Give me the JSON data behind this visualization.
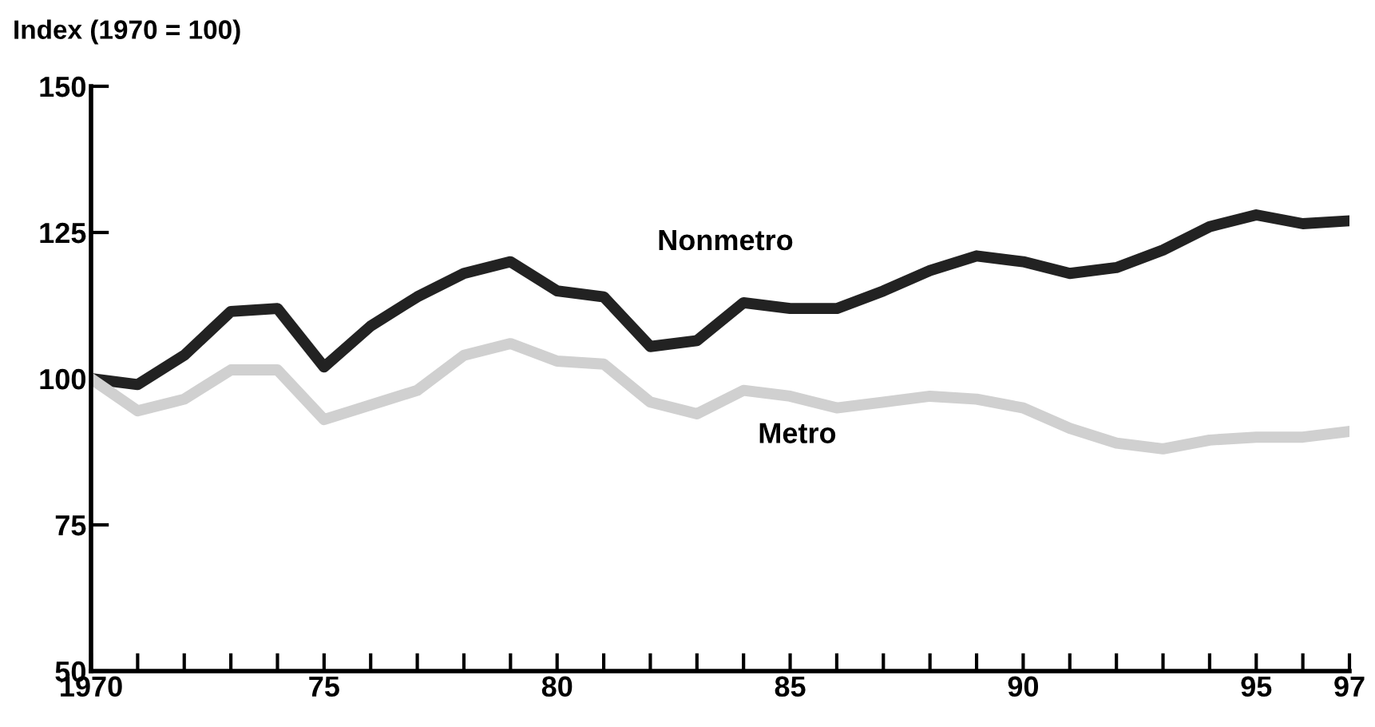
{
  "chart_data": {
    "type": "line",
    "ylabel": "Index (1970 = 100)",
    "x": [
      1970,
      1971,
      1972,
      1973,
      1974,
      1975,
      1976,
      1977,
      1978,
      1979,
      1980,
      1981,
      1982,
      1983,
      1984,
      1985,
      1986,
      1987,
      1988,
      1989,
      1990,
      1991,
      1992,
      1993,
      1994,
      1995,
      1996,
      1997
    ],
    "series": [
      {
        "name": "Nonmetro",
        "color": "#222222",
        "values": [
          100,
          99,
          104,
          111.5,
          112,
          102,
          109,
          114,
          118,
          120,
          115,
          114,
          105.5,
          106.5,
          113,
          112,
          112,
          115,
          118.5,
          121,
          120,
          118,
          119,
          122,
          126,
          128,
          126.5,
          127
        ]
      },
      {
        "name": "Metro",
        "color": "#d0d0d0",
        "values": [
          100,
          94.5,
          96.5,
          101.5,
          101.5,
          93,
          95.5,
          98,
          104,
          106,
          103,
          102.5,
          96,
          94,
          98,
          97,
          95,
          96,
          97,
          96.5,
          95,
          91.5,
          89,
          88,
          89.5,
          90,
          90,
          91
        ]
      }
    ],
    "xlim": [
      1970,
      1997
    ],
    "ylim": [
      50,
      150
    ],
    "xticks": [
      {
        "value": 1970,
        "label": "1970"
      },
      {
        "value": 1971,
        "label": null
      },
      {
        "value": 1972,
        "label": null
      },
      {
        "value": 1973,
        "label": null
      },
      {
        "value": 1974,
        "label": null
      },
      {
        "value": 1975,
        "label": "75"
      },
      {
        "value": 1976,
        "label": null
      },
      {
        "value": 1977,
        "label": null
      },
      {
        "value": 1978,
        "label": null
      },
      {
        "value": 1979,
        "label": null
      },
      {
        "value": 1980,
        "label": "80"
      },
      {
        "value": 1981,
        "label": null
      },
      {
        "value": 1982,
        "label": null
      },
      {
        "value": 1983,
        "label": null
      },
      {
        "value": 1984,
        "label": null
      },
      {
        "value": 1985,
        "label": "85"
      },
      {
        "value": 1986,
        "label": null
      },
      {
        "value": 1987,
        "label": null
      },
      {
        "value": 1988,
        "label": null
      },
      {
        "value": 1989,
        "label": null
      },
      {
        "value": 1990,
        "label": "90"
      },
      {
        "value": 1991,
        "label": null
      },
      {
        "value": 1992,
        "label": null
      },
      {
        "value": 1993,
        "label": null
      },
      {
        "value": 1994,
        "label": null
      },
      {
        "value": 1995,
        "label": "95"
      },
      {
        "value": 1996,
        "label": null
      },
      {
        "value": 1997,
        "label": "97"
      }
    ],
    "yticks": [
      50,
      75,
      100,
      125,
      150
    ],
    "grid": false,
    "legend": false,
    "marker": "none",
    "line_style": "solid"
  }
}
